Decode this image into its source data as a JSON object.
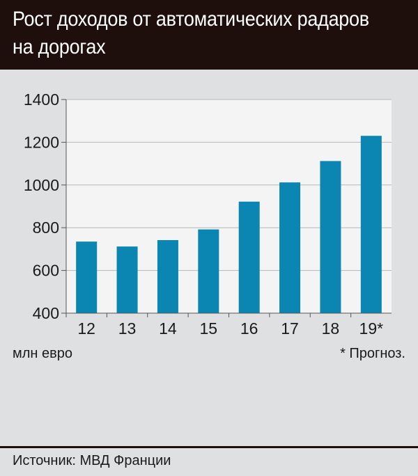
{
  "header": {
    "title": "Рост доходов от автоматических радаров на дорогах",
    "background": "#1e0f0c"
  },
  "chart_data": {
    "type": "bar",
    "title": "Рост доходов от автоматических радаров на дорогах",
    "categories": [
      "12",
      "13",
      "14",
      "15",
      "16",
      "17",
      "18",
      "19*"
    ],
    "values": [
      735,
      712,
      742,
      792,
      922,
      1012,
      1112,
      1230
    ],
    "ylabel": "млн евро",
    "ylim": [
      400,
      1400
    ],
    "yticks": [
      1400,
      1200,
      1000,
      800,
      600,
      400
    ],
    "grid": true,
    "bar_color": "#0b86b2"
  },
  "notes": {
    "unit": "млн евро",
    "forecast": "* Прогноз."
  },
  "footer": {
    "source": "Источник: МВД Франции"
  }
}
